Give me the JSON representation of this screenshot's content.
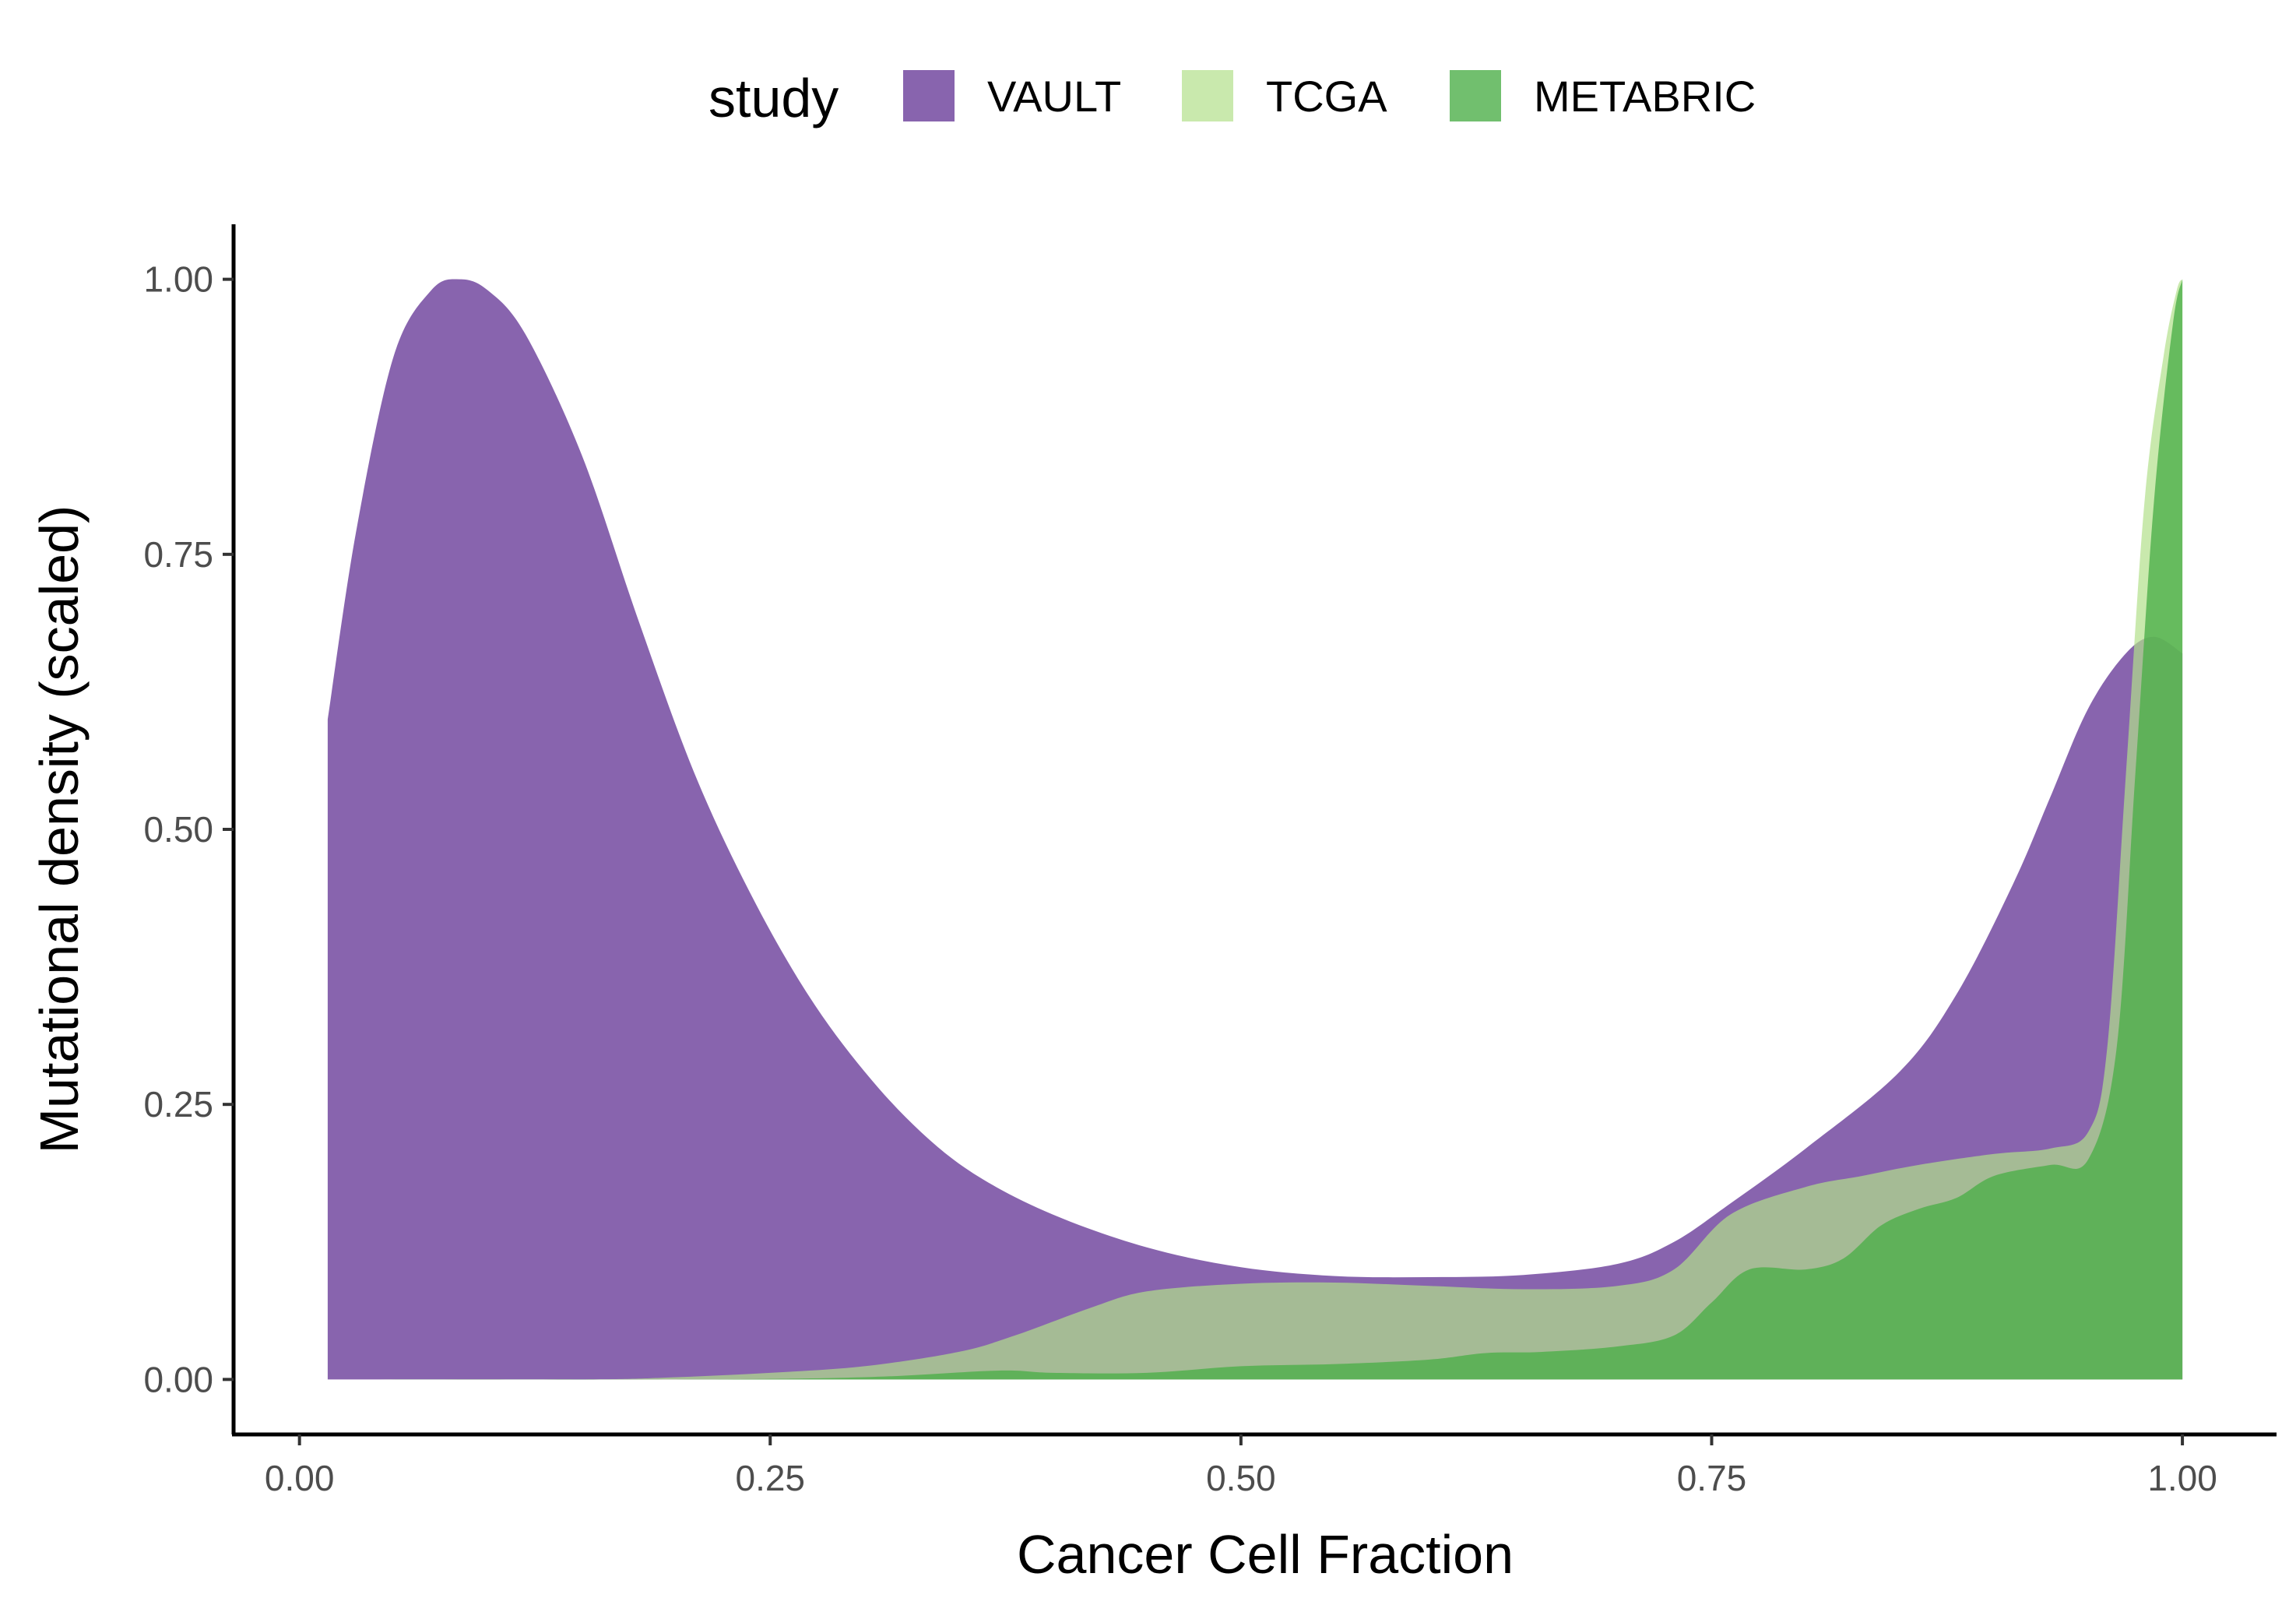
{
  "chart_data": {
    "type": "area",
    "xlabel": "Cancer Cell Fraction",
    "ylabel": "Mutational density (scaled)",
    "xlim": [
      -0.035,
      1.05
    ],
    "ylim": [
      -0.05,
      1.05
    ],
    "x_ticks": [
      0.0,
      0.25,
      0.5,
      0.75,
      1.0
    ],
    "x_tick_labels": [
      "0.00",
      "0.25",
      "0.50",
      "0.75",
      "1.00"
    ],
    "y_ticks": [
      0.0,
      0.25,
      0.5,
      0.75,
      1.0
    ],
    "y_tick_labels": [
      "0.00",
      "0.25",
      "0.50",
      "0.75",
      "1.00"
    ],
    "grid": false,
    "legend": {
      "title": "study",
      "placement": "top",
      "entries": [
        "VAULT",
        "TCGA",
        "METABRIC"
      ]
    },
    "series": [
      {
        "name": "VAULT",
        "color": "#6a3d9a",
        "opacity": 0.8,
        "points": [
          [
            0.015,
            0.6
          ],
          [
            0.03,
            0.77
          ],
          [
            0.05,
            0.93
          ],
          [
            0.07,
            0.99
          ],
          [
            0.085,
            1.0
          ],
          [
            0.1,
            0.99
          ],
          [
            0.12,
            0.95
          ],
          [
            0.15,
            0.84
          ],
          [
            0.18,
            0.69
          ],
          [
            0.21,
            0.55
          ],
          [
            0.24,
            0.44
          ],
          [
            0.27,
            0.35
          ],
          [
            0.3,
            0.28
          ],
          [
            0.33,
            0.225
          ],
          [
            0.36,
            0.185
          ],
          [
            0.4,
            0.15
          ],
          [
            0.45,
            0.12
          ],
          [
            0.5,
            0.102
          ],
          [
            0.55,
            0.094
          ],
          [
            0.6,
            0.093
          ],
          [
            0.65,
            0.095
          ],
          [
            0.7,
            0.105
          ],
          [
            0.73,
            0.125
          ],
          [
            0.76,
            0.16
          ],
          [
            0.8,
            0.21
          ],
          [
            0.85,
            0.28
          ],
          [
            0.88,
            0.35
          ],
          [
            0.91,
            0.45
          ],
          [
            0.93,
            0.53
          ],
          [
            0.95,
            0.61
          ],
          [
            0.97,
            0.66
          ],
          [
            0.985,
            0.675
          ],
          [
            1.0,
            0.66
          ]
        ]
      },
      {
        "name": "TCGA",
        "color": "#b2df8a",
        "opacity": 0.7,
        "points": [
          [
            0.015,
            0.0
          ],
          [
            0.15,
            0.0
          ],
          [
            0.2,
            0.002
          ],
          [
            0.25,
            0.006
          ],
          [
            0.3,
            0.012
          ],
          [
            0.35,
            0.025
          ],
          [
            0.38,
            0.04
          ],
          [
            0.42,
            0.065
          ],
          [
            0.45,
            0.08
          ],
          [
            0.5,
            0.087
          ],
          [
            0.55,
            0.088
          ],
          [
            0.6,
            0.085
          ],
          [
            0.65,
            0.082
          ],
          [
            0.7,
            0.085
          ],
          [
            0.73,
            0.1
          ],
          [
            0.76,
            0.15
          ],
          [
            0.8,
            0.175
          ],
          [
            0.83,
            0.185
          ],
          [
            0.86,
            0.195
          ],
          [
            0.9,
            0.205
          ],
          [
            0.93,
            0.21
          ],
          [
            0.95,
            0.225
          ],
          [
            0.96,
            0.3
          ],
          [
            0.97,
            0.55
          ],
          [
            0.98,
            0.8
          ],
          [
            0.99,
            0.93
          ],
          [
            0.997,
            0.99
          ],
          [
            1.0,
            1.0
          ]
        ]
      },
      {
        "name": "METABRIC",
        "color": "#4daf4a",
        "opacity": 0.8,
        "points": [
          [
            0.015,
            0.0
          ],
          [
            0.2,
            0.0
          ],
          [
            0.3,
            0.002
          ],
          [
            0.37,
            0.008
          ],
          [
            0.4,
            0.006
          ],
          [
            0.45,
            0.006
          ],
          [
            0.5,
            0.012
          ],
          [
            0.55,
            0.014
          ],
          [
            0.6,
            0.018
          ],
          [
            0.63,
            0.024
          ],
          [
            0.66,
            0.025
          ],
          [
            0.7,
            0.03
          ],
          [
            0.73,
            0.04
          ],
          [
            0.75,
            0.07
          ],
          [
            0.77,
            0.1
          ],
          [
            0.8,
            0.1
          ],
          [
            0.82,
            0.11
          ],
          [
            0.84,
            0.14
          ],
          [
            0.86,
            0.155
          ],
          [
            0.88,
            0.165
          ],
          [
            0.9,
            0.185
          ],
          [
            0.93,
            0.195
          ],
          [
            0.95,
            0.2
          ],
          [
            0.965,
            0.3
          ],
          [
            0.975,
            0.55
          ],
          [
            0.985,
            0.8
          ],
          [
            0.995,
            0.96
          ],
          [
            1.0,
            1.0
          ]
        ]
      }
    ]
  }
}
